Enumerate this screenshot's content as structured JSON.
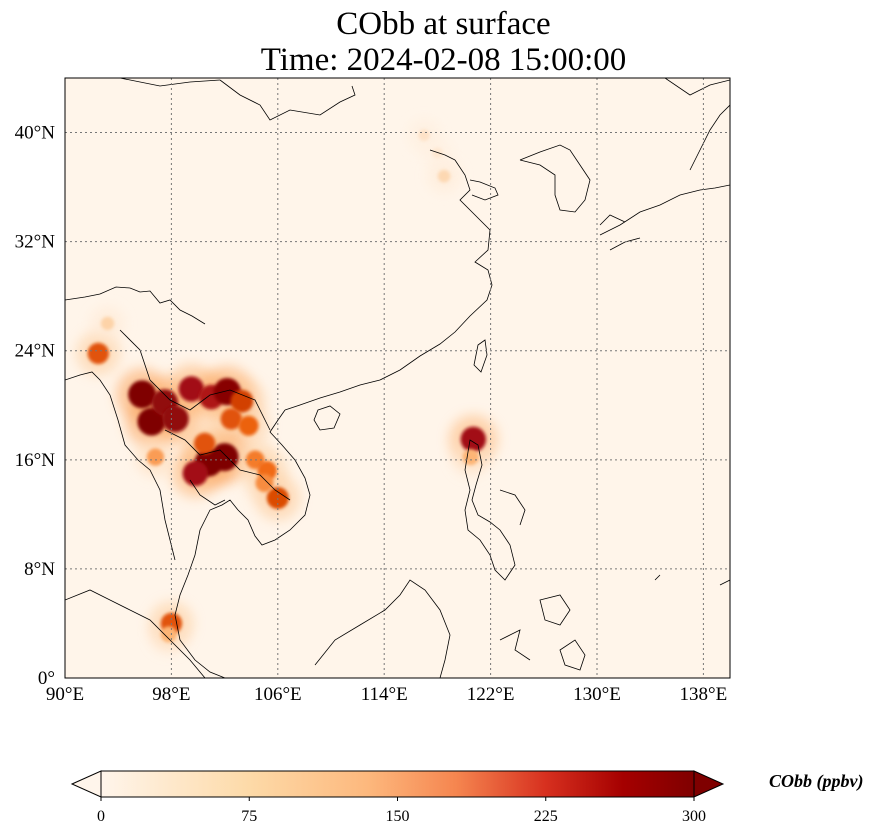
{
  "title": {
    "line1": "CObb at surface",
    "line2": "Time: 2024-02-08 15:00:00"
  },
  "map": {
    "projection": "PlateCarree",
    "lon_range": [
      90,
      140
    ],
    "lat_range": [
      0,
      44
    ],
    "gridlines": "dotted",
    "lon_ticks": [
      {
        "value": 90,
        "label": "90°E"
      },
      {
        "value": 98,
        "label": "98°E"
      },
      {
        "value": 106,
        "label": "106°E"
      },
      {
        "value": 114,
        "label": "114°E"
      },
      {
        "value": 122,
        "label": "122°E"
      },
      {
        "value": 130,
        "label": "130°E"
      },
      {
        "value": 138,
        "label": "138°E"
      }
    ],
    "lat_ticks": [
      {
        "value": 0,
        "label": "0°"
      },
      {
        "value": 8,
        "label": "8°N"
      },
      {
        "value": 16,
        "label": "16°N"
      },
      {
        "value": 24,
        "label": "24°N"
      },
      {
        "value": 32,
        "label": "32°N"
      },
      {
        "value": 40,
        "label": "40°N"
      }
    ],
    "hotspots": [
      {
        "lon": 95.8,
        "lat": 20.8,
        "value": 300
      },
      {
        "lon": 96.5,
        "lat": 18.8,
        "value": 300
      },
      {
        "lon": 97.5,
        "lat": 20.2,
        "value": 280
      },
      {
        "lon": 98.3,
        "lat": 19.0,
        "value": 280
      },
      {
        "lon": 99.5,
        "lat": 21.2,
        "value": 260
      },
      {
        "lon": 101.0,
        "lat": 20.6,
        "value": 250
      },
      {
        "lon": 102.2,
        "lat": 21.0,
        "value": 290
      },
      {
        "lon": 103.3,
        "lat": 20.3,
        "value": 220
      },
      {
        "lon": 102.5,
        "lat": 19.0,
        "value": 200
      },
      {
        "lon": 103.8,
        "lat": 18.5,
        "value": 180
      },
      {
        "lon": 100.8,
        "lat": 15.8,
        "value": 300
      },
      {
        "lon": 102.0,
        "lat": 16.2,
        "value": 300
      },
      {
        "lon": 99.8,
        "lat": 15.0,
        "value": 260
      },
      {
        "lon": 100.5,
        "lat": 17.2,
        "value": 200
      },
      {
        "lon": 104.3,
        "lat": 16.0,
        "value": 160
      },
      {
        "lon": 105.2,
        "lat": 15.2,
        "value": 170
      },
      {
        "lon": 106.0,
        "lat": 13.2,
        "value": 210
      },
      {
        "lon": 105.0,
        "lat": 14.3,
        "value": 150
      },
      {
        "lon": 96.8,
        "lat": 16.2,
        "value": 140
      },
      {
        "lon": 92.5,
        "lat": 23.8,
        "value": 200
      },
      {
        "lon": 93.2,
        "lat": 26.0,
        "value": 80
      },
      {
        "lon": 98.0,
        "lat": 4.0,
        "value": 200
      },
      {
        "lon": 97.8,
        "lat": 3.2,
        "value": 120
      },
      {
        "lon": 120.7,
        "lat": 17.5,
        "value": 260
      },
      {
        "lon": 120.5,
        "lat": 16.2,
        "value": 120
      },
      {
        "lon": 117.0,
        "lat": 39.8,
        "value": 50
      },
      {
        "lon": 118.5,
        "lat": 36.8,
        "value": 70
      },
      {
        "lon": 118.0,
        "lat": 38.5,
        "value": 40
      }
    ]
  },
  "colorbar": {
    "label": "CObb (ppbv)",
    "min": 0,
    "max": 300,
    "extend": "both",
    "ticks": [
      "0",
      "75",
      "150",
      "225",
      "300"
    ],
    "colors": [
      "#fff5eb",
      "#fee6ce",
      "#fdd0a2",
      "#fdae6b",
      "#f16913",
      "#d94801",
      "#a50f15",
      "#7f0000"
    ],
    "colormap": "OrRd"
  }
}
